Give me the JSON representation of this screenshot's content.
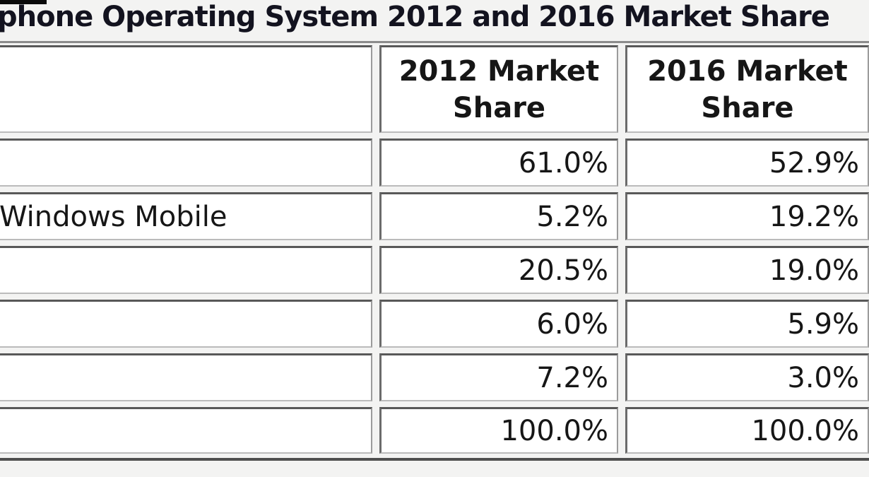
{
  "title": "phone Operating System 2012 and 2016 Market Share",
  "chart_data": {
    "type": "table",
    "title": "phone Operating System 2012 and 2016 Market Share",
    "columns": [
      {
        "header": "2012 Market Share"
      },
      {
        "header": "2016 Market Share"
      }
    ],
    "rows": [
      {
        "label": "",
        "values": [
          "61.0%",
          "52.9%"
        ]
      },
      {
        "label": "Windows Mobile",
        "values": [
          "5.2%",
          "19.2%"
        ]
      },
      {
        "label": "",
        "values": [
          "20.5%",
          "19.0%"
        ]
      },
      {
        "label": "",
        "values": [
          "6.0%",
          "5.9%"
        ]
      },
      {
        "label": "",
        "values": [
          "7.2%",
          "3.0%"
        ]
      },
      {
        "label": "",
        "values": [
          "100.0%",
          "100.0%"
        ]
      }
    ],
    "units": "%",
    "notes": {
      "crop": "screenshot is cropped: OS label column and left part of title cut off at left edge; 2016 column and title end cut off at right edge"
    }
  },
  "colors": {
    "page_background": "#f3f3f2",
    "cell_background": "#ffffff",
    "border_dark": "#585858",
    "border_light": "#bbbbbb",
    "rule_top": "#8c8c8c",
    "rule_bottom": "#4f4f4f",
    "text": "#161616",
    "title_text": "#13131f"
  }
}
